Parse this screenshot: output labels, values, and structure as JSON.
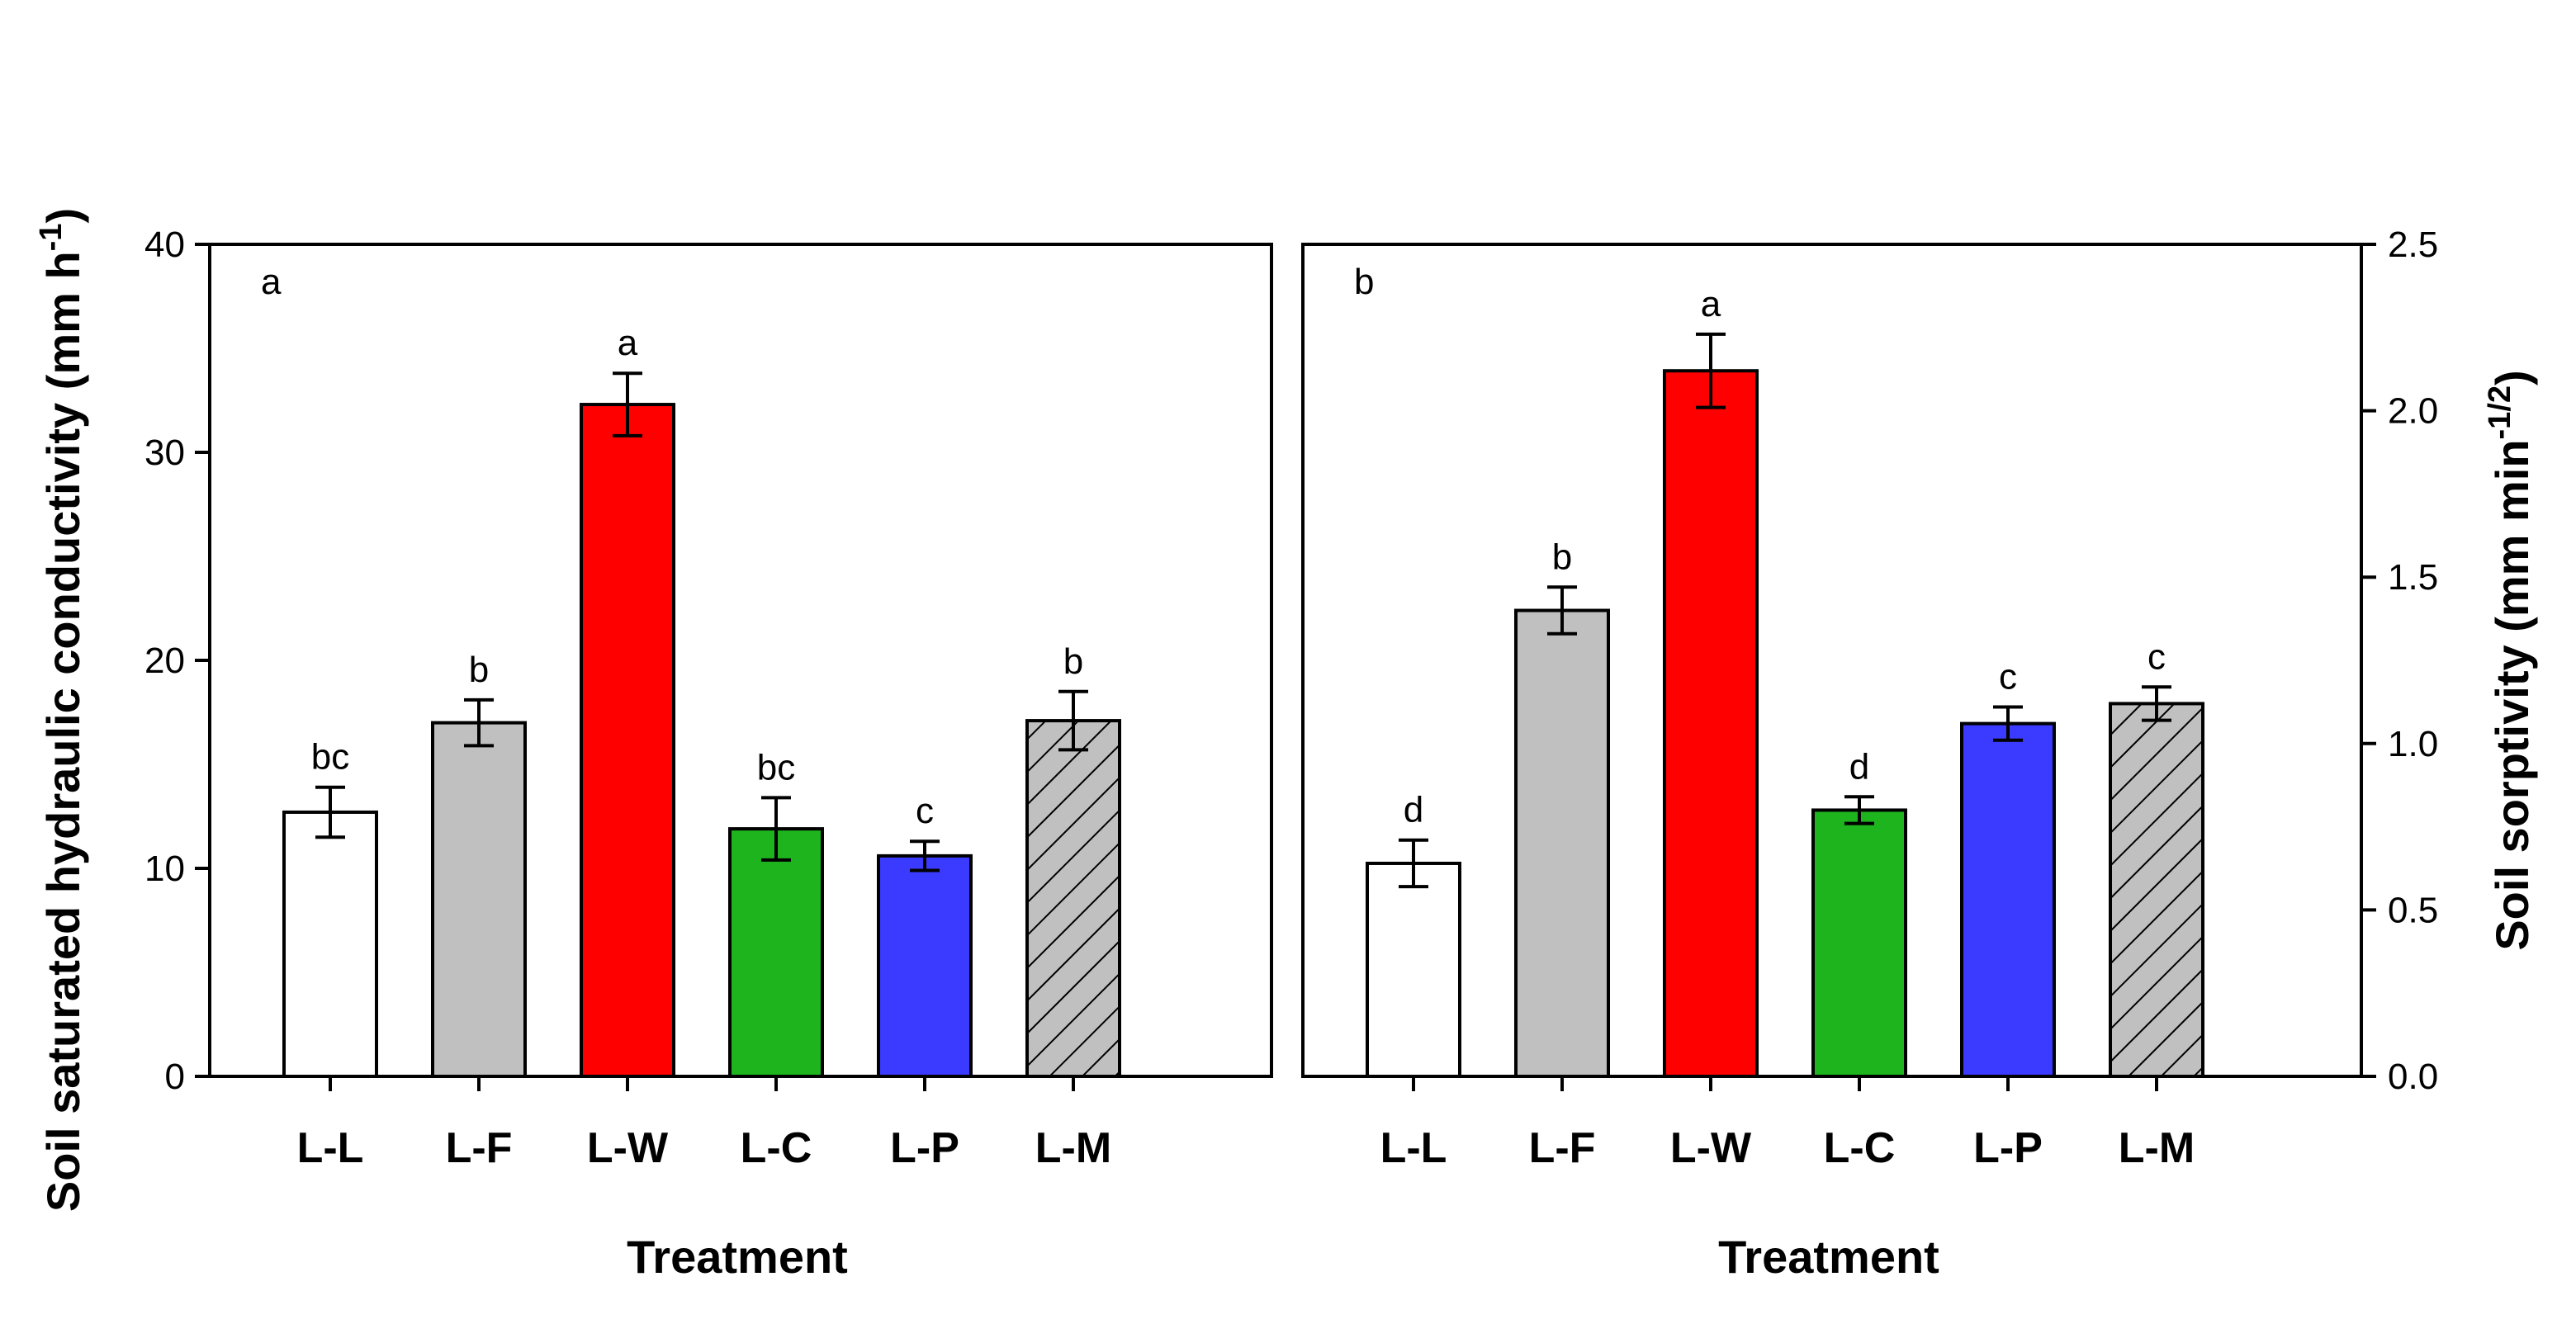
{
  "chart_data": [
    {
      "type": "bar",
      "panel_label": "a",
      "categories": [
        "L-L",
        "L-F",
        "L-W",
        "L-C",
        "L-P",
        "L-M"
      ],
      "values": [
        12.7,
        17.0,
        32.3,
        11.9,
        10.6,
        17.1
      ],
      "errors": [
        1.2,
        1.1,
        1.5,
        1.5,
        0.7,
        1.4
      ],
      "significance": [
        "bc",
        "b",
        "a",
        "bc",
        "c",
        "b"
      ],
      "xlabel": "Treatment",
      "ylabel": "Soil saturated hydraulic conductivity (mm h",
      "ylabel_superscript": "-1",
      "ylabel_close": ")",
      "ylim": [
        0,
        40
      ],
      "yticks": [
        "0",
        "10",
        "20",
        "30",
        "40"
      ],
      "ytick_values": [
        0,
        10,
        20,
        30,
        40
      ],
      "colors": [
        "#ffffff",
        "#c0c0c0",
        "#ff0000",
        "#1db41d",
        "#3b3bff",
        "#c0c0c0"
      ],
      "patterns": [
        "none",
        "none",
        "none",
        "none",
        "none",
        "diagonal-hatch"
      ]
    },
    {
      "type": "bar",
      "panel_label": "b",
      "categories": [
        "L-L",
        "L-F",
        "L-W",
        "L-C",
        "L-P",
        "L-M"
      ],
      "values": [
        0.64,
        1.4,
        2.12,
        0.8,
        1.06,
        1.12
      ],
      "errors": [
        0.07,
        0.07,
        0.11,
        0.04,
        0.05,
        0.05
      ],
      "significance": [
        "d",
        "b",
        "a",
        "d",
        "c",
        "c"
      ],
      "xlabel": "Treatment",
      "ylabel": "Soil sorptivity (mm min",
      "ylabel_superscript": "-1/2",
      "ylabel_close": ")",
      "ylim": [
        0,
        2.5
      ],
      "yticks": [
        "0.0",
        "0.5",
        "1.0",
        "1.5",
        "2.0",
        "2.5"
      ],
      "ytick_values": [
        0,
        0.5,
        1.0,
        1.5,
        2.0,
        2.5
      ],
      "colors": [
        "#ffffff",
        "#c0c0c0",
        "#ff0000",
        "#1db41d",
        "#3b3bff",
        "#c0c0c0"
      ],
      "patterns": [
        "none",
        "none",
        "none",
        "none",
        "none",
        "diagonal-hatch"
      ]
    }
  ]
}
